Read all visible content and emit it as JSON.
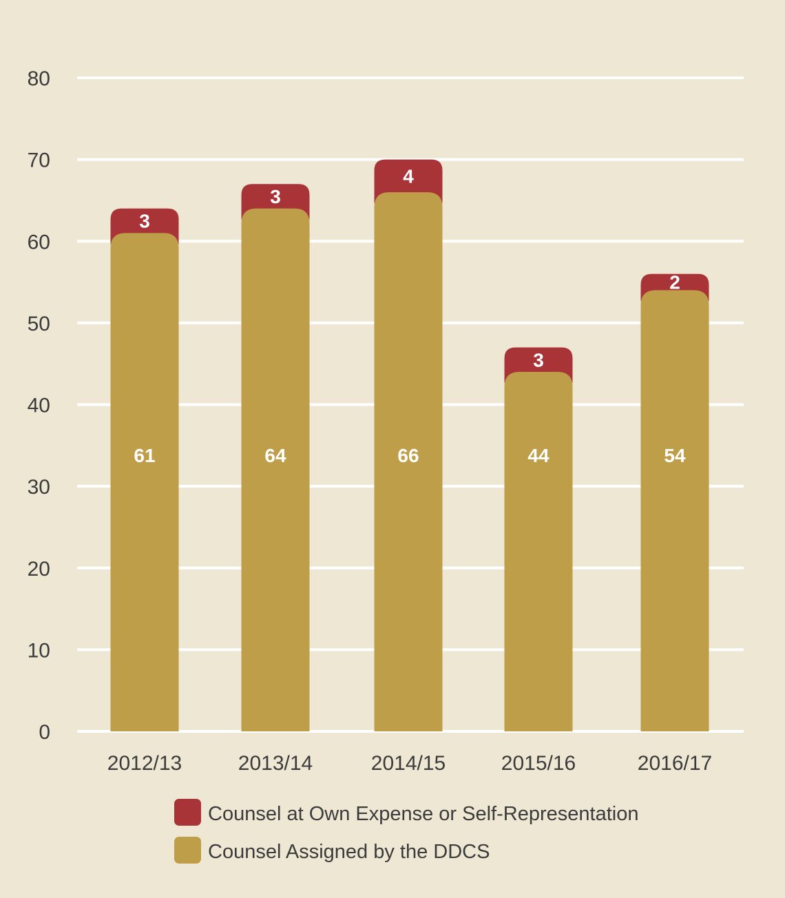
{
  "colors": {
    "background": "#EEE7D4",
    "gridline": "#FFFFFF",
    "series_own_expense": "#A93438",
    "series_ddcs": "#BE9E48",
    "text": "#3B3B3B",
    "value_label": "#FFFFFF"
  },
  "chart_data": {
    "type": "bar",
    "stacked": true,
    "categories": [
      "2012/13",
      "2013/14",
      "2014/15",
      "2015/16",
      "2016/17"
    ],
    "series": [
      {
        "name": "Counsel Assigned by the DDCS",
        "values": [
          61,
          64,
          66,
          44,
          54
        ]
      },
      {
        "name": "Counsel at Own Expense or Self-Representation",
        "values": [
          3,
          3,
          4,
          3,
          2
        ]
      }
    ],
    "ylim": [
      0,
      80
    ],
    "yticks": [
      0,
      10,
      20,
      30,
      40,
      50,
      60,
      70,
      80
    ],
    "title": "",
    "xlabel": "",
    "ylabel": "",
    "grid": true,
    "legend": {
      "placement": "bottom",
      "entries": [
        "Counsel at Own Expense or Self-Representation",
        "Counsel Assigned by the DDCS"
      ]
    }
  }
}
